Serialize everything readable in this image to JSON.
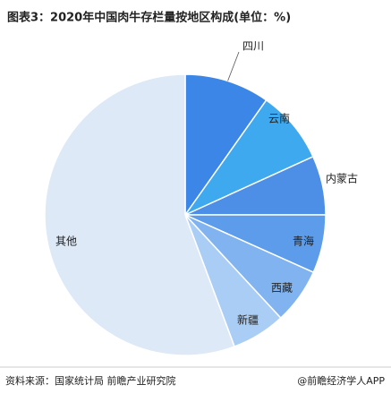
{
  "chart_data": {
    "type": "pie",
    "title": "图表3：2020年中国肉牛存栏量按地区构成(单位：%)",
    "categories": [
      "四川",
      "云南",
      "内蒙古",
      "青海",
      "西藏",
      "新疆",
      "其他"
    ],
    "values": [
      9.8,
      8.4,
      6.8,
      6.7,
      6.4,
      6.2,
      55.7
    ],
    "colors": [
      "#3b86e6",
      "#3ea9ef",
      "#4d8fe6",
      "#5c9cea",
      "#80b3ef",
      "#aacdf5",
      "#dde9f6"
    ],
    "source": "资料来源：国家统计局 前瞻产业研究院",
    "credit": "@前瞻经济学人APP"
  }
}
